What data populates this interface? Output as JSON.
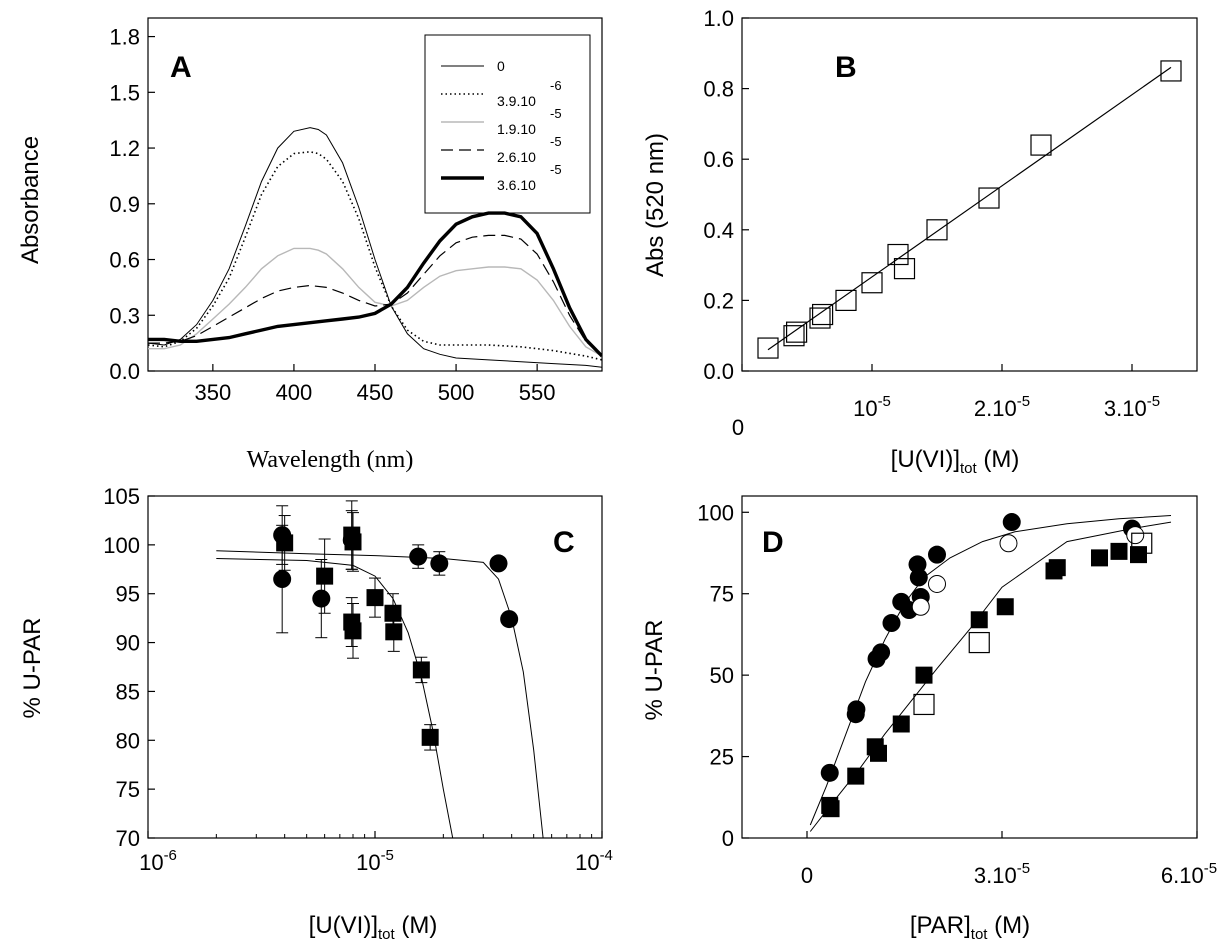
{
  "chart_data": [
    {
      "panel": "A",
      "type": "line",
      "xlabel": "Wavelength (nm)",
      "ylabel": "Absorbance",
      "xlim": [
        310,
        590
      ],
      "ylim": [
        0,
        1.9
      ],
      "xticks": [
        350,
        400,
        450,
        500,
        550
      ],
      "yticks": [
        0.0,
        0.3,
        0.6,
        0.9,
        1.2,
        1.5,
        1.8
      ],
      "ytick_labels": [
        "0.0",
        "0.3",
        "0.6",
        "0.9",
        "1.2",
        "1.5",
        "1.8"
      ],
      "legend": {
        "position": "top-right",
        "entries": [
          {
            "label": "0",
            "exp": ""
          },
          {
            "label": "3.9.10",
            "exp": "-6"
          },
          {
            "label": "1.9.10",
            "exp": "-5"
          },
          {
            "label": "2.6.10",
            "exp": "-5"
          },
          {
            "label": "3.6.10",
            "exp": "-5"
          }
        ]
      },
      "series": [
        {
          "style": "solid-thin",
          "color": "#000000",
          "x": [
            310,
            320,
            330,
            340,
            350,
            360,
            370,
            380,
            390,
            400,
            410,
            415,
            420,
            430,
            440,
            450,
            460,
            470,
            480,
            490,
            500,
            520,
            540,
            560,
            580,
            590
          ],
          "y": [
            0.15,
            0.14,
            0.17,
            0.25,
            0.38,
            0.55,
            0.78,
            1.02,
            1.2,
            1.29,
            1.31,
            1.3,
            1.27,
            1.12,
            0.88,
            0.6,
            0.35,
            0.2,
            0.12,
            0.09,
            0.07,
            0.06,
            0.05,
            0.04,
            0.03,
            0.02
          ]
        },
        {
          "style": "dotted",
          "color": "#000000",
          "x": [
            310,
            320,
            330,
            340,
            350,
            360,
            370,
            380,
            390,
            400,
            410,
            415,
            420,
            430,
            440,
            450,
            460,
            470,
            480,
            490,
            500,
            520,
            540,
            560,
            580,
            590
          ],
          "y": [
            0.14,
            0.13,
            0.16,
            0.23,
            0.35,
            0.5,
            0.72,
            0.95,
            1.1,
            1.17,
            1.18,
            1.17,
            1.14,
            1.02,
            0.82,
            0.56,
            0.35,
            0.22,
            0.16,
            0.14,
            0.14,
            0.14,
            0.13,
            0.11,
            0.08,
            0.06
          ]
        },
        {
          "style": "gray",
          "color": "#b8b8b8",
          "x": [
            310,
            320,
            330,
            340,
            350,
            360,
            370,
            380,
            390,
            400,
            410,
            415,
            420,
            430,
            440,
            450,
            460,
            470,
            480,
            490,
            500,
            510,
            520,
            530,
            540,
            550,
            560,
            570,
            580,
            590
          ],
          "y": [
            0.12,
            0.12,
            0.14,
            0.2,
            0.28,
            0.36,
            0.45,
            0.55,
            0.62,
            0.66,
            0.66,
            0.65,
            0.63,
            0.55,
            0.45,
            0.37,
            0.35,
            0.38,
            0.45,
            0.51,
            0.54,
            0.55,
            0.56,
            0.56,
            0.55,
            0.49,
            0.38,
            0.24,
            0.13,
            0.08
          ]
        },
        {
          "style": "dashed",
          "color": "#000000",
          "x": [
            310,
            320,
            330,
            340,
            350,
            360,
            370,
            380,
            390,
            400,
            410,
            420,
            430,
            440,
            450,
            460,
            470,
            480,
            490,
            500,
            510,
            520,
            530,
            540,
            550,
            560,
            570,
            580,
            590
          ],
          "y": [
            0.15,
            0.15,
            0.16,
            0.19,
            0.24,
            0.29,
            0.34,
            0.39,
            0.43,
            0.45,
            0.46,
            0.45,
            0.42,
            0.38,
            0.35,
            0.36,
            0.42,
            0.52,
            0.62,
            0.69,
            0.72,
            0.73,
            0.73,
            0.71,
            0.63,
            0.48,
            0.3,
            0.16,
            0.08
          ]
        },
        {
          "style": "solid-thick",
          "color": "#000000",
          "x": [
            310,
            320,
            330,
            340,
            350,
            360,
            370,
            380,
            390,
            400,
            410,
            420,
            430,
            440,
            450,
            460,
            470,
            480,
            490,
            500,
            510,
            520,
            530,
            540,
            550,
            560,
            570,
            580,
            590
          ],
          "y": [
            0.17,
            0.17,
            0.16,
            0.16,
            0.17,
            0.18,
            0.2,
            0.22,
            0.24,
            0.25,
            0.26,
            0.27,
            0.28,
            0.29,
            0.31,
            0.36,
            0.45,
            0.58,
            0.7,
            0.79,
            0.83,
            0.85,
            0.85,
            0.83,
            0.74,
            0.55,
            0.34,
            0.17,
            0.08
          ]
        }
      ]
    },
    {
      "panel": "B",
      "type": "scatter",
      "xlabel": "[U(VI)]",
      "xlabel_sub": "tot",
      "xlabel_suffix": " (M)",
      "ylabel": "Abs (520 nm)",
      "xlim": [
        0,
        3.5e-05
      ],
      "ylim": [
        0,
        1.0
      ],
      "xticks": [
        0,
        1e-05,
        2e-05,
        3e-05
      ],
      "xtick_labels": [
        {
          "base": "0",
          "exp": ""
        },
        {
          "base": "10",
          "exp": "-5"
        },
        {
          "base": "2.10",
          "exp": "-5"
        },
        {
          "base": "3.10",
          "exp": "-5"
        }
      ],
      "yticks": [
        0.0,
        0.2,
        0.4,
        0.6,
        0.8,
        1.0
      ],
      "ytick_labels": [
        "0.0",
        "0.2",
        "0.4",
        "0.6",
        "0.8",
        "1.0"
      ],
      "points": {
        "marker": "open-square",
        "x": [
          2e-06,
          4e-06,
          4.2e-06,
          6e-06,
          6.2e-06,
          8e-06,
          1e-05,
          1.2e-05,
          1.25e-05,
          1.5e-05,
          1.9e-05,
          2.3e-05,
          3.3e-05
        ],
        "y": [
          0.065,
          0.1,
          0.11,
          0.15,
          0.16,
          0.2,
          0.25,
          0.33,
          0.29,
          0.4,
          0.49,
          0.64,
          0.85
        ]
      },
      "fit": {
        "x": [
          2e-06,
          3.3e-05
        ],
        "y": [
          0.06,
          0.86
        ]
      }
    },
    {
      "panel": "C",
      "type": "scatter",
      "xscale": "log",
      "xlabel": "[U(VI)]",
      "xlabel_sub": "tot",
      "xlabel_suffix": " (M)",
      "ylabel": "% U-PAR",
      "xlim": [
        1e-06,
        0.0001
      ],
      "ylim": [
        70,
        105
      ],
      "xticks": [
        1e-06,
        1e-05,
        0.0001
      ],
      "xtick_labels": [
        {
          "base": "10",
          "exp": "-6"
        },
        {
          "base": "10",
          "exp": "-5"
        },
        {
          "base": "10",
          "exp": "-4"
        }
      ],
      "yticks": [
        70,
        75,
        80,
        85,
        90,
        95,
        100,
        105
      ],
      "ytick_labels": [
        "70",
        "75",
        "80",
        "85",
        "90",
        "95",
        "100",
        "105"
      ],
      "series": [
        {
          "marker": "filled-circle",
          "x": [
            3.9e-06,
            3.9e-06,
            5.8e-06,
            7.9e-06,
            1.55e-05,
            1.92e-05,
            3.5e-05,
            3.9e-05
          ],
          "y": [
            101,
            96.5,
            94.5,
            100.5,
            98.8,
            98.1,
            98.1,
            92.4
          ],
          "err": [
            3,
            5.5,
            4,
            3,
            1.2,
            1.2,
            0.6,
            0.5
          ]
        },
        {
          "marker": "filled-square",
          "x": [
            4e-06,
            6e-06,
            7.9e-06,
            7.9e-06,
            8e-06,
            8e-06,
            1e-05,
            1.2e-05,
            1.21e-05,
            1.6e-05,
            1.75e-05
          ],
          "y": [
            100.2,
            96.8,
            101,
            92.1,
            91.2,
            100.3,
            94.6,
            93,
            91.1,
            87.2,
            80.3
          ],
          "err": [
            2.8,
            3.8,
            3.5,
            2.5,
            2.8,
            3,
            2,
            2,
            2,
            1.3,
            1.3
          ]
        }
      ],
      "fits": [
        {
          "x": [
            2e-06,
            5e-06,
            1e-05,
            2e-05,
            3e-05,
            3.5e-05,
            4e-05,
            4.5e-05,
            5e-05,
            5.5e-05
          ],
          "y": [
            99.4,
            99.1,
            98.9,
            98.6,
            98.2,
            96.5,
            92.5,
            87,
            79,
            70
          ]
        },
        {
          "x": [
            2e-06,
            5e-06,
            8e-06,
            1e-05,
            1.2e-05,
            1.4e-05,
            1.6e-05,
            1.8e-05,
            2e-05,
            2.2e-05
          ],
          "y": [
            98.6,
            98.4,
            97.9,
            96.8,
            94.5,
            91,
            86.5,
            81,
            75,
            70
          ]
        }
      ]
    },
    {
      "panel": "D",
      "type": "scatter",
      "xlabel": "[PAR]",
      "xlabel_sub": "tot",
      "xlabel_suffix": " (M)",
      "ylabel": "% U-PAR",
      "xlim": [
        -1e-05,
        6e-05
      ],
      "ylim": [
        0,
        105
      ],
      "xticks": [
        0,
        3e-05,
        6e-05
      ],
      "xtick_labels": [
        {
          "base": "0",
          "exp": ""
        },
        {
          "base": "3.10",
          "exp": "-5"
        },
        {
          "base": "6.10",
          "exp": "-5"
        }
      ],
      "yticks": [
        0,
        25,
        50,
        75,
        100
      ],
      "ytick_labels": [
        "0",
        "25",
        "50",
        "75",
        "100"
      ],
      "series": [
        {
          "marker": "filled-circle",
          "x": [
            3.5e-06,
            7.5e-06,
            7.6e-06,
            1.07e-05,
            1.14e-05,
            1.3e-05,
            1.45e-05,
            1.57e-05,
            1.7e-05,
            1.72e-05,
            1.75e-05,
            2e-05,
            3.15e-05,
            5e-05
          ],
          "y": [
            20,
            38,
            39.5,
            55,
            57,
            66,
            72.5,
            70,
            84,
            80,
            74,
            87,
            97,
            95
          ]
        },
        {
          "marker": "open-circle",
          "x": [
            1.75e-05,
            2e-05,
            3.1e-05,
            5.05e-05
          ],
          "y": [
            71,
            78,
            90.5,
            93
          ]
        },
        {
          "marker": "filled-square",
          "x": [
            3.5e-06,
            3.7e-06,
            7.5e-06,
            1.05e-05,
            1.1e-05,
            1.45e-05,
            1.8e-05,
            2.65e-05,
            3.05e-05,
            3.85e-05,
            4.5e-05,
            4.8e-05,
            5.1e-05,
            3.8e-05
          ],
          "y": [
            10,
            9,
            19,
            28,
            26,
            35,
            50,
            67,
            71,
            83,
            86,
            88,
            87,
            82
          ]
        },
        {
          "marker": "open-square",
          "x": [
            1.8e-05,
            2.65e-05,
            5.15e-05
          ],
          "y": [
            41,
            60,
            90.5
          ]
        }
      ],
      "fits": [
        {
          "x": [
            5e-07,
            3e-06,
            6e-06,
            9e-06,
            1.2e-05,
            1.5e-05,
            1.8e-05,
            2.2e-05,
            2.7e-05,
            3.2e-05,
            4e-05,
            4.8e-05,
            5.6e-05
          ],
          "y": [
            4,
            16,
            32,
            48,
            61,
            72,
            80,
            86,
            91,
            94,
            96.5,
            98,
            99
          ]
        },
        {
          "x": [
            5e-07,
            4e-06,
            8e-06,
            1.2e-05,
            1.6e-05,
            2e-05,
            2.5e-05,
            3e-05,
            3.5e-05,
            4e-05,
            4.5e-05,
            5e-05,
            5.6e-05
          ],
          "y": [
            2,
            11,
            21,
            32,
            42,
            52,
            64,
            77,
            84,
            91,
            93,
            95,
            97
          ]
        }
      ]
    }
  ]
}
